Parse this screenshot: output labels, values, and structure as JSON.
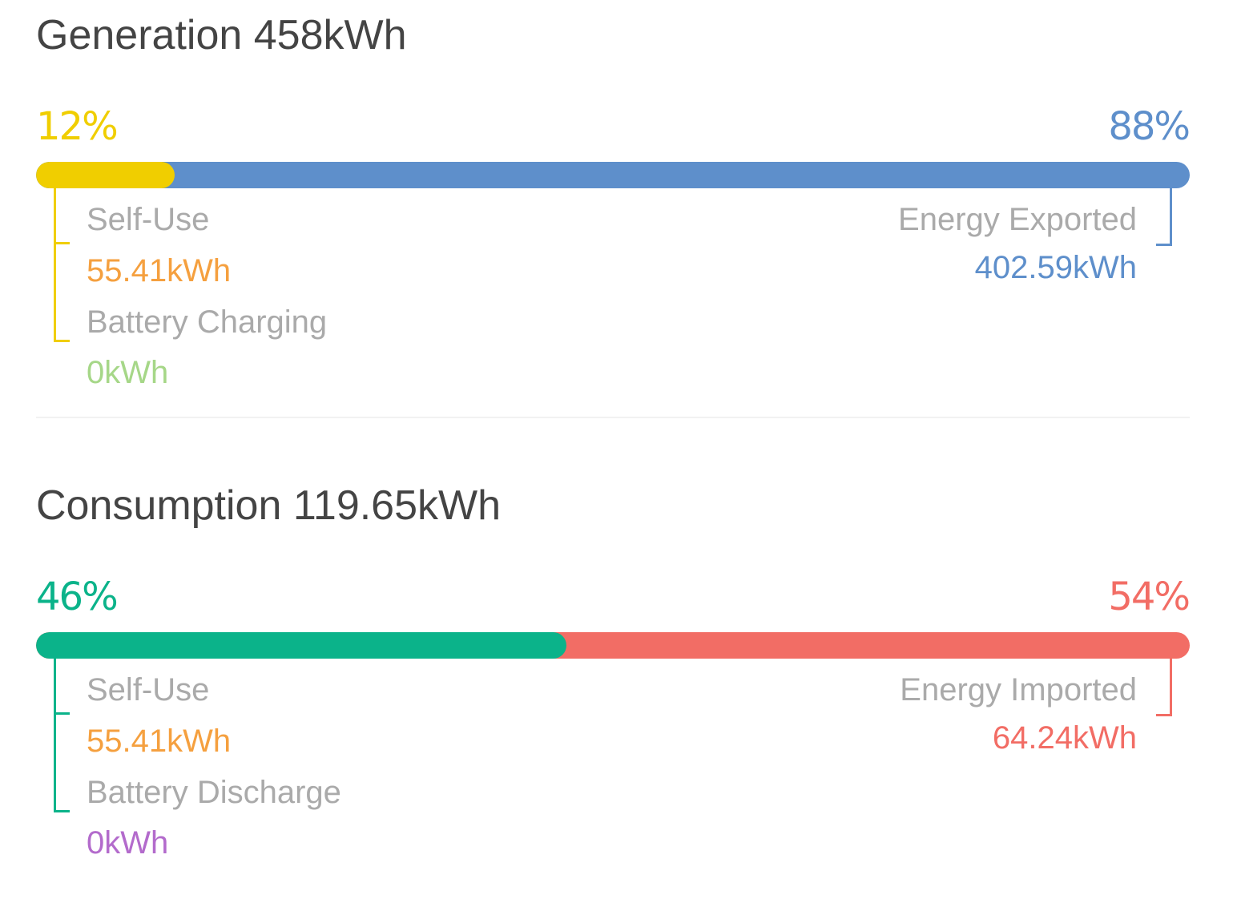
{
  "generation": {
    "title": "Generation 458kWh",
    "left_percent": "12%",
    "right_percent": "88%",
    "left_fraction": 0.12,
    "left_color": "#F0CE00",
    "right_color": "#5E8FCB",
    "self_use_label": "Self-Use",
    "self_use_value": "55.41kWh",
    "self_use_color": "#F5A03F",
    "battery_label": "Battery Charging",
    "battery_value": "0kWh",
    "battery_color": "#A6D788",
    "right_label": "Energy Exported",
    "right_value": "402.59kWh"
  },
  "consumption": {
    "title": "Consumption 119.65kWh",
    "left_percent": "46%",
    "right_percent": "54%",
    "left_fraction": 0.46,
    "left_color": "#0BB38A",
    "right_color": "#F26D65",
    "self_use_label": "Self-Use",
    "self_use_value": "55.41kWh",
    "self_use_color": "#F5A03F",
    "battery_label": "Battery Discharge",
    "battery_value": "0kWh",
    "battery_color": "#B36BCC",
    "right_label": "Energy Imported",
    "right_value": "64.24kWh"
  }
}
